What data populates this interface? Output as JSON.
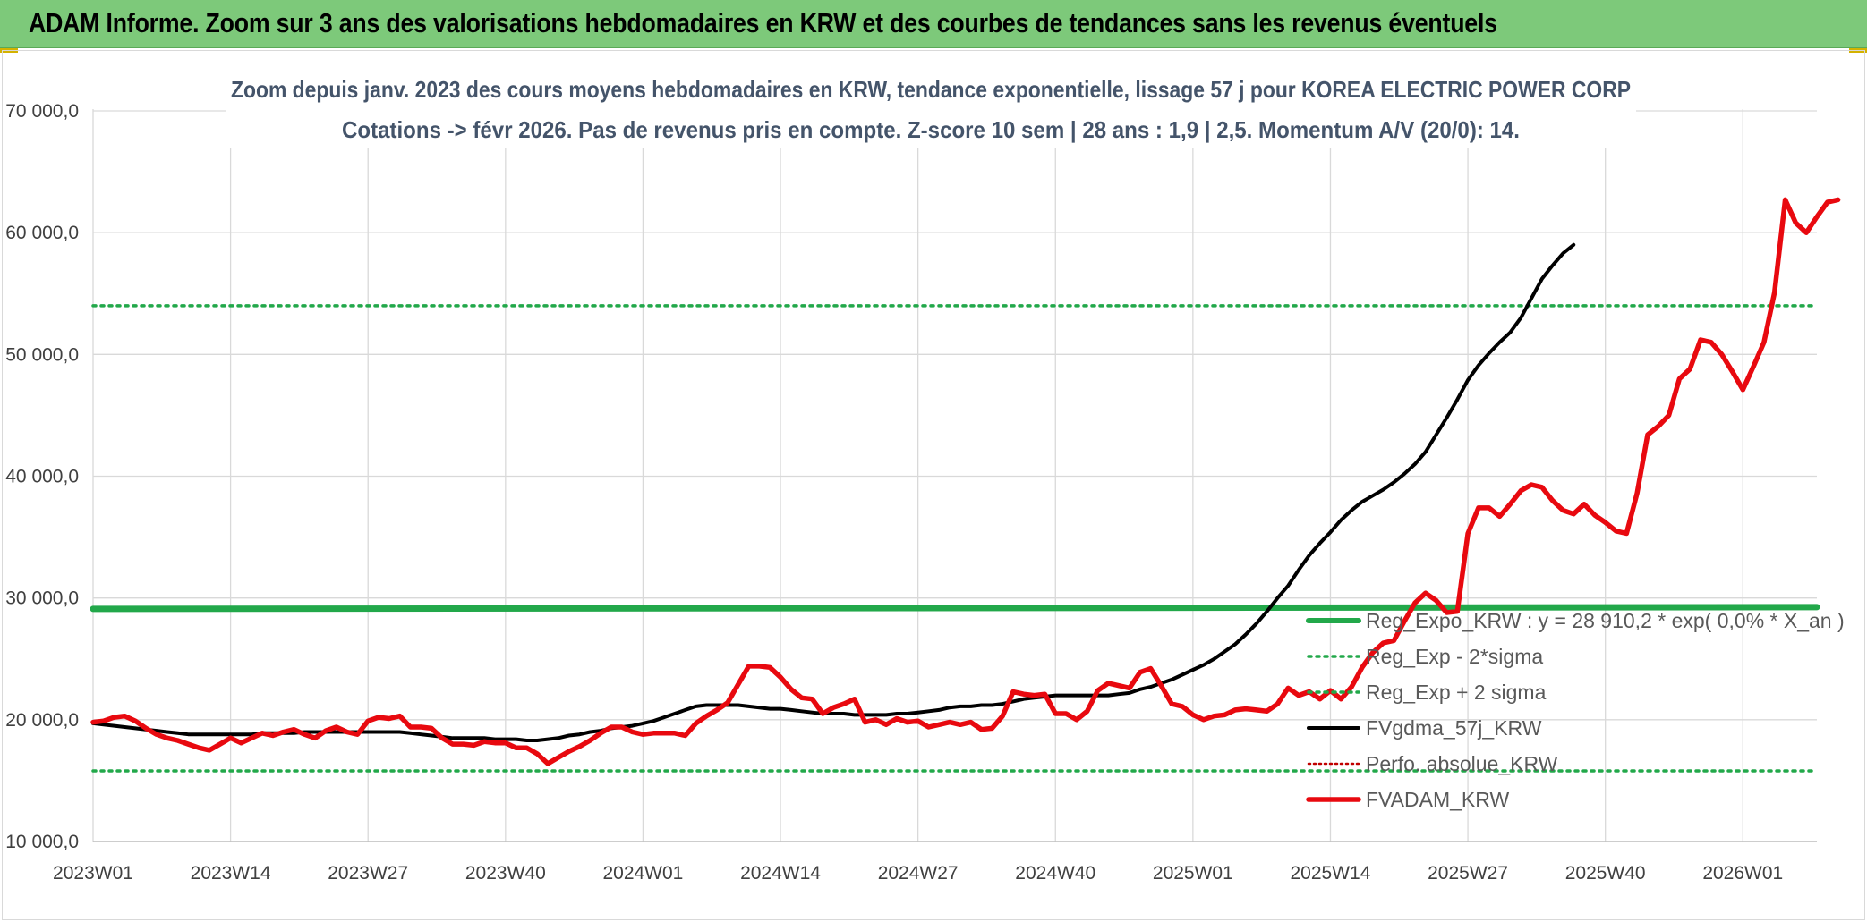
{
  "banner": {
    "title": "ADAM Informe. Zoom sur 3 ans des valorisations hebdomadaires en KRW et des courbes de tendances sans les revenus éventuels"
  },
  "colors": {
    "banner_bg": "#7dc97a",
    "fvadam": "#e8090f",
    "fvgdma": "#000000",
    "reg_expo": "#22a84a",
    "sigma_bands": "#22a84a",
    "perfo": "#c00000",
    "title_text": "#44546a"
  },
  "chart_data": {
    "type": "line",
    "title_lines": [
      "Zoom depuis janv. 2023 des cours moyens hebdomadaires en KRW, tendance exponentielle, lissage 57 j pour KOREA ELECTRIC POWER CORP",
      "Cotations -> févr 2026. Pas de revenus pris en compte. Z-score 10 sem | 28 ans : 1,9 | 2,5. Momentum A/V (20/0): 14."
    ],
    "y_ticks": [
      "10 000,0",
      "20 000,0",
      "30 000,0",
      "40 000,0",
      "50 000,0",
      "60 000,0",
      "70 000,0"
    ],
    "ylim": [
      10000,
      70000
    ],
    "x_tick_labels": [
      "2023W01",
      "2023W14",
      "2023W27",
      "2023W40",
      "2024W01",
      "2024W14",
      "2024W27",
      "2024W40",
      "2025W01",
      "2025W14",
      "2025W27",
      "2025W40",
      "2026W01"
    ],
    "grid": true,
    "legend_position": "right-inside",
    "series": [
      {
        "name": "Reg_Expo_KRW : y = 28 910,2 * exp( 0,0% *  X_an )",
        "style": "thick-solid-green",
        "values": [
          29100,
          29250
        ]
      },
      {
        "name": "Reg_Exp - 2*sigma",
        "style": "dotted-green",
        "values": [
          15800,
          15800
        ]
      },
      {
        "name": "Reg_Exp + 2 sigma",
        "style": "dotted-green",
        "values": [
          54000,
          54000
        ]
      },
      {
        "name": "FVgdma_57j_KRW",
        "style": "solid-black",
        "values": [
          19700,
          19600,
          19500,
          19400,
          19300,
          19200,
          19100,
          19000,
          18900,
          18800,
          18800,
          18800,
          18800,
          18800,
          18800,
          18800,
          18900,
          18900,
          18900,
          18900,
          19000,
          19000,
          19000,
          19000,
          19000,
          19000,
          19000,
          19000,
          19000,
          19000,
          18900,
          18800,
          18700,
          18600,
          18500,
          18500,
          18500,
          18500,
          18400,
          18400,
          18400,
          18300,
          18300,
          18400,
          18500,
          18700,
          18800,
          19000,
          19100,
          19300,
          19400,
          19500,
          19700,
          19900,
          20200,
          20500,
          20800,
          21100,
          21200,
          21200,
          21200,
          21200,
          21100,
          21000,
          20900,
          20900,
          20800,
          20700,
          20600,
          20500,
          20500,
          20500,
          20400,
          20400,
          20400,
          20400,
          20500,
          20500,
          20600,
          20700,
          20800,
          21000,
          21100,
          21100,
          21200,
          21200,
          21300,
          21500,
          21700,
          21800,
          21900,
          22000,
          22000,
          22000,
          22000,
          22000,
          22000,
          22100,
          22200,
          22500,
          22700,
          23000,
          23300,
          23700,
          24100,
          24500,
          25000,
          25600,
          26200,
          27000,
          27900,
          28900,
          30000,
          31000,
          32300,
          33500,
          34500,
          35400,
          36400,
          37200,
          37900,
          38400,
          38900,
          39500,
          40200,
          41000,
          42000,
          43400,
          44800,
          46300,
          47900,
          49100,
          50100,
          51000,
          51800,
          53000,
          54600,
          56200,
          57300,
          58300,
          59000
        ]
      },
      {
        "name": "Perfo. absolue_KRW",
        "style": "dotted-red",
        "values": []
      },
      {
        "name": "FVADAM_KRW",
        "style": "thick-solid-red",
        "values": [
          19800,
          19900,
          20200,
          20300,
          19900,
          19300,
          18800,
          18500,
          18300,
          18000,
          17700,
          17500,
          18000,
          18500,
          18100,
          18500,
          18900,
          18700,
          19000,
          19200,
          18800,
          18500,
          19100,
          19400,
          19000,
          18800,
          19900,
          20200,
          20100,
          20300,
          19400,
          19400,
          19300,
          18500,
          18000,
          18000,
          17900,
          18200,
          18100,
          18100,
          17700,
          17700,
          17200,
          16400,
          16900,
          17400,
          17800,
          18300,
          18900,
          19400,
          19400,
          19000,
          18800,
          18900,
          18900,
          18900,
          18700,
          19700,
          20300,
          20800,
          21400,
          22900,
          24400,
          24400,
          24300,
          23500,
          22500,
          21800,
          21700,
          20500,
          21000,
          21300,
          21700,
          19800,
          20000,
          19600,
          20100,
          19800,
          19900,
          19400,
          19600,
          19800,
          19600,
          19800,
          19200,
          19300,
          20300,
          22300,
          22100,
          22000,
          22100,
          20500,
          20500,
          20000,
          20700,
          22400,
          23000,
          22800,
          22600,
          23900,
          24200,
          22800,
          21300,
          21100,
          20400,
          20000,
          20300,
          20400,
          20800,
          20900,
          20800,
          20700,
          21300,
          22600,
          22000,
          22300,
          21700,
          22400,
          21700,
          22700,
          24300,
          25500,
          26300,
          26500,
          28100,
          29600,
          30400,
          29800,
          28800,
          28900,
          35300,
          37400,
          37400,
          36700,
          37700,
          38800,
          39300,
          39100,
          38000,
          37200,
          36900,
          37700,
          36800,
          36200,
          35500,
          35300,
          38600,
          43400,
          44100,
          45000,
          48000,
          48800,
          51200,
          51000,
          50000,
          48600,
          47100,
          49000,
          51000,
          55100,
          62700,
          60800,
          60000,
          61300,
          62500,
          62700
        ]
      }
    ]
  }
}
